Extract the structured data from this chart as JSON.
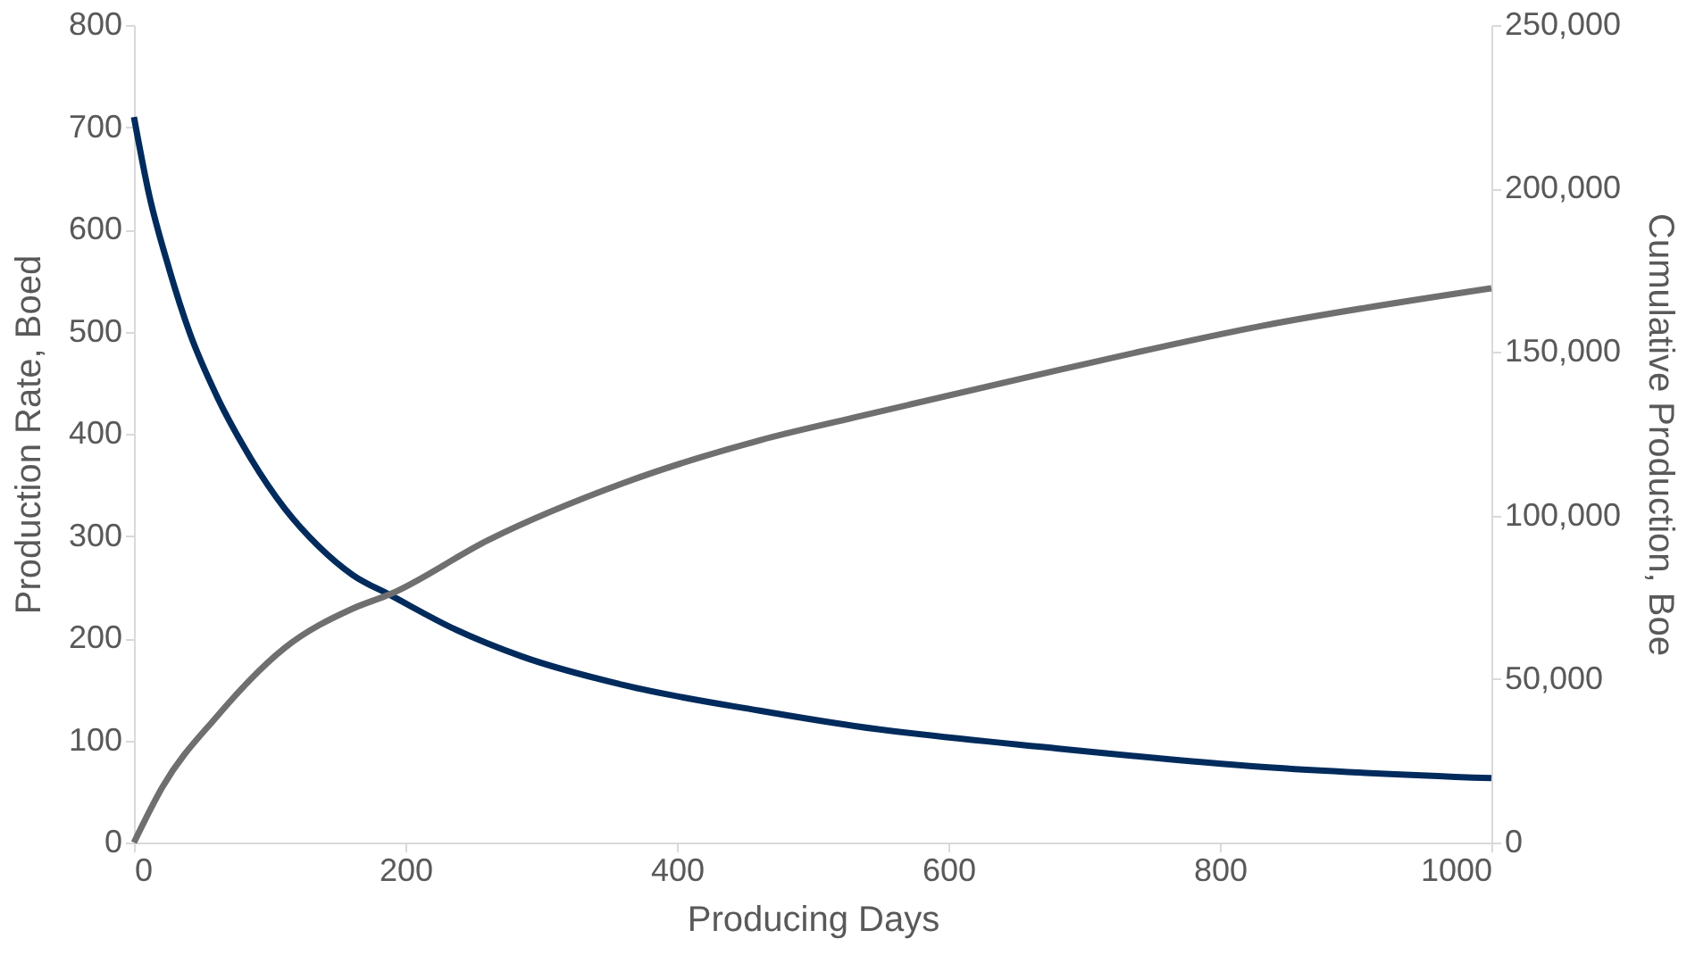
{
  "chart_data": {
    "type": "line",
    "xlabel": "Producing Days",
    "ylabel": "Production Rate, Boed",
    "y2label": "Cumulative Production, Boe",
    "xlim": [
      0,
      1000
    ],
    "xticks": [
      0,
      200,
      400,
      600,
      800,
      1000
    ],
    "ylim": [
      0,
      800
    ],
    "yticks": [
      0,
      100,
      200,
      300,
      400,
      500,
      600,
      700,
      800
    ],
    "y2lim": [
      0,
      250000
    ],
    "y2ticks": [
      0,
      {
        "value": 50000,
        "label": "50,000"
      },
      {
        "value": 100000,
        "label": "100,000"
      },
      {
        "value": 150000,
        "label": "150,000"
      },
      {
        "value": 200000,
        "label": "200,000"
      },
      {
        "value": 250000,
        "label": "250,000"
      }
    ],
    "grid": false,
    "marker": "none",
    "line_style": "solid",
    "series": [
      {
        "color": "#002b5c",
        "x": [
          0,
          11,
          26,
          41,
          61,
          86,
          111,
          136,
          161,
          189,
          236,
          286,
          361,
          461,
          531,
          681,
          831,
          1000
        ],
        "values": [
          710,
          635,
          561,
          499,
          437,
          376,
          327,
          290,
          262,
          242,
          209,
          182,
          154,
          129,
          114,
          92,
          74,
          63
        ]
      },
      {
        "color": "#6f6f6f",
        "axis": "y2",
        "x": [
          0,
          21,
          61,
          111,
          161,
          189,
          261,
          361,
          461,
          531,
          681,
          831,
          1000
        ],
        "values": [
          0,
          17000,
          38500,
          59500,
          71500,
          76000,
          92500,
          110000,
          123000,
          130000,
          144500,
          158000,
          169500
        ]
      }
    ]
  }
}
